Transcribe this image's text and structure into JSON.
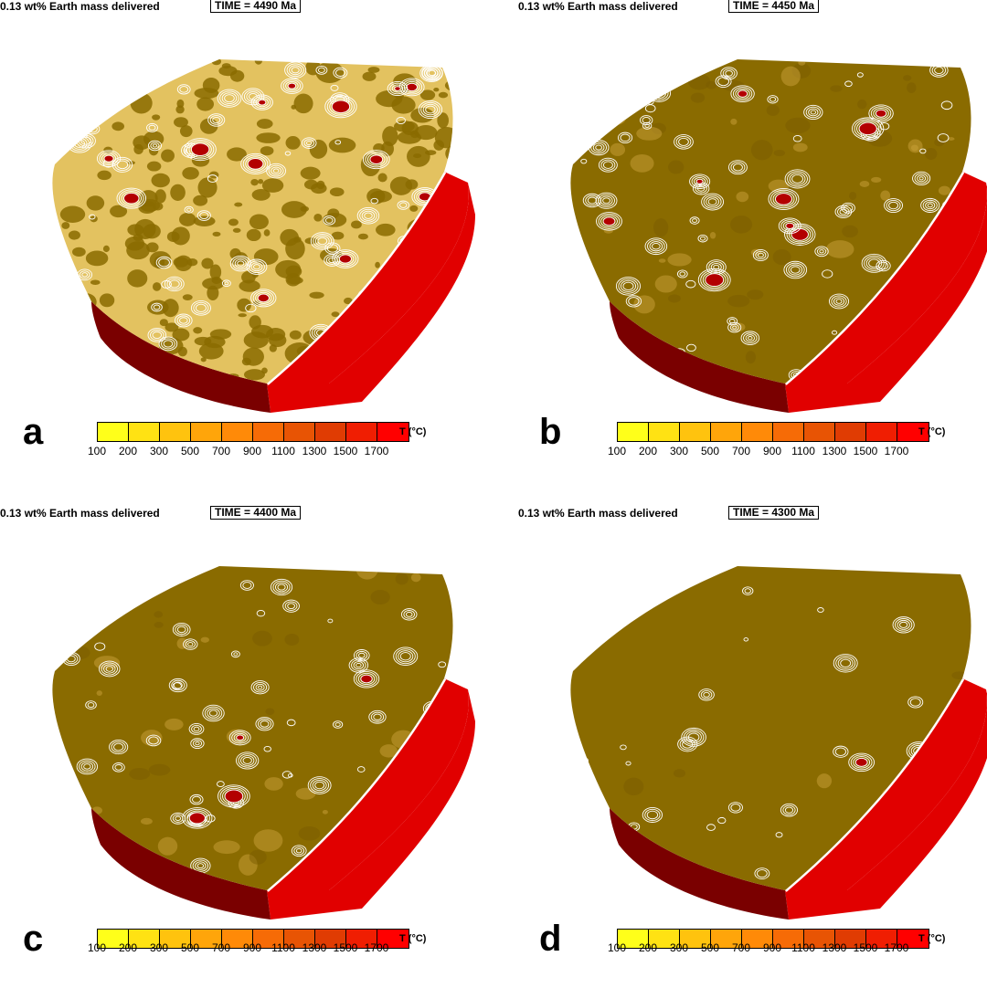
{
  "panels": [
    {
      "id": "a",
      "header": "0.13 wt% Earth mass delivered",
      "time": "TIME = 4490 Ma",
      "letter": "a",
      "density": "high"
    },
    {
      "id": "b",
      "header": "0.13 wt% Earth mass delivered",
      "time": "TIME = 4450 Ma",
      "letter": "b",
      "density": "medium"
    },
    {
      "id": "c",
      "header": "0.13 wt% Earth mass delivered",
      "time": "TIME = 4400 Ma",
      "letter": "c",
      "density": "low"
    },
    {
      "id": "d",
      "header": "0.13 wt% Earth mass delivered",
      "time": "TIME = 4300 Ma",
      "letter": "d",
      "density": "minimal"
    }
  ],
  "colorbar": {
    "unit_label": "T (°C)",
    "ticks": [
      "100",
      "200",
      "300",
      "500",
      "700",
      "900",
      "1100",
      "1300",
      "1500",
      "1700"
    ],
    "colors": [
      "#ffff1a",
      "#ffe213",
      "#ffc30e",
      "#ffa50a",
      "#ff8a08",
      "#f66b06",
      "#e85404",
      "#e03c03",
      "#f01e02",
      "#ff0000"
    ]
  },
  "colors": {
    "surface_dark": "#8a6b00",
    "surface_light": "#e3c260",
    "side_wall": "#e10000",
    "side_shadow": "#7a0000",
    "hot_spot": "#b30000",
    "contour": "#ffffff"
  }
}
